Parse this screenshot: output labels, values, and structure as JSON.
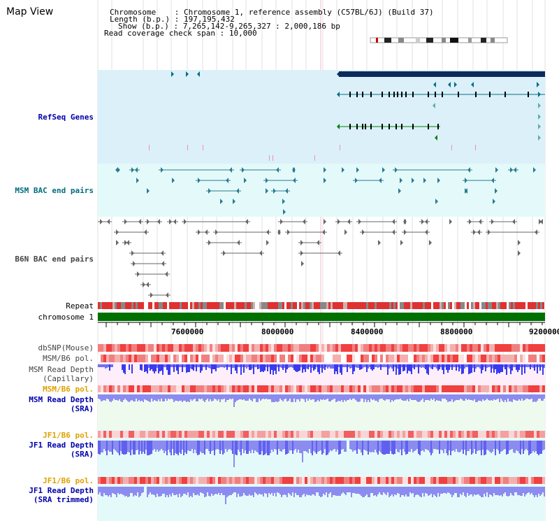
{
  "title": "Map View",
  "header": {
    "chromosome_label": "Chromosome",
    "chromosome_value": "Chromosome 1, reference assembly (C57BL/6J) (Build 37)",
    "length_label": "Length (b.p.)",
    "length_value": "197,195,432",
    "show_label": "Show (b.p.)",
    "show_value": "7,265,142-9,265,327 : 2,000,186 bp",
    "coverage_label": "Read coverage check span",
    "coverage_value": "10,000"
  },
  "tracks": {
    "refseq": "RefSeq Genes",
    "msm_bac": "MSM BAC end pairs",
    "b6n_bac": "B6N BAC end pairs",
    "repeat": "Repeat",
    "chromosome": "chromosome 1",
    "dbsnp": "dbSNP(Mouse)",
    "msm_b6_pol_1": "MSM/B6 pol.",
    "msm_read_depth_cap_1": "MSM Read Depth",
    "msm_read_depth_cap_2": "(Capillary)",
    "msm_b6_pol_2": "MSM/B6 pol.",
    "msm_read_depth_sra_1": "MSM Read Depth",
    "msm_read_depth_sra_2": "(SRA)",
    "jf1_b6_pol_1": "JF1/B6 pol.",
    "jf1_read_depth_1": "JF1 Read Depth",
    "jf1_read_depth_2": "(SRA)",
    "jf1_b6_pol_2": "JF1/B6 pol.",
    "jf1_read_depth_trim_1": "JF1 Read Depth",
    "jf1_read_depth_trim_2": "(SRA trimmed)"
  },
  "axis": {
    "ticks": [
      "7600000",
      "8000000",
      "8400000",
      "8800000",
      "9200000"
    ]
  },
  "colors": {
    "refseq_bg": "#dcf0fa",
    "msm_bg": "#e4fafa",
    "label_navy": "#0000aa",
    "label_teal": "#006c80",
    "label_gray": "#444444",
    "label_orange": "#e0a000",
    "chromosome_green": "#007000",
    "depth_blue": "#3a3af0",
    "depth_light": "#8c8cf0"
  }
}
